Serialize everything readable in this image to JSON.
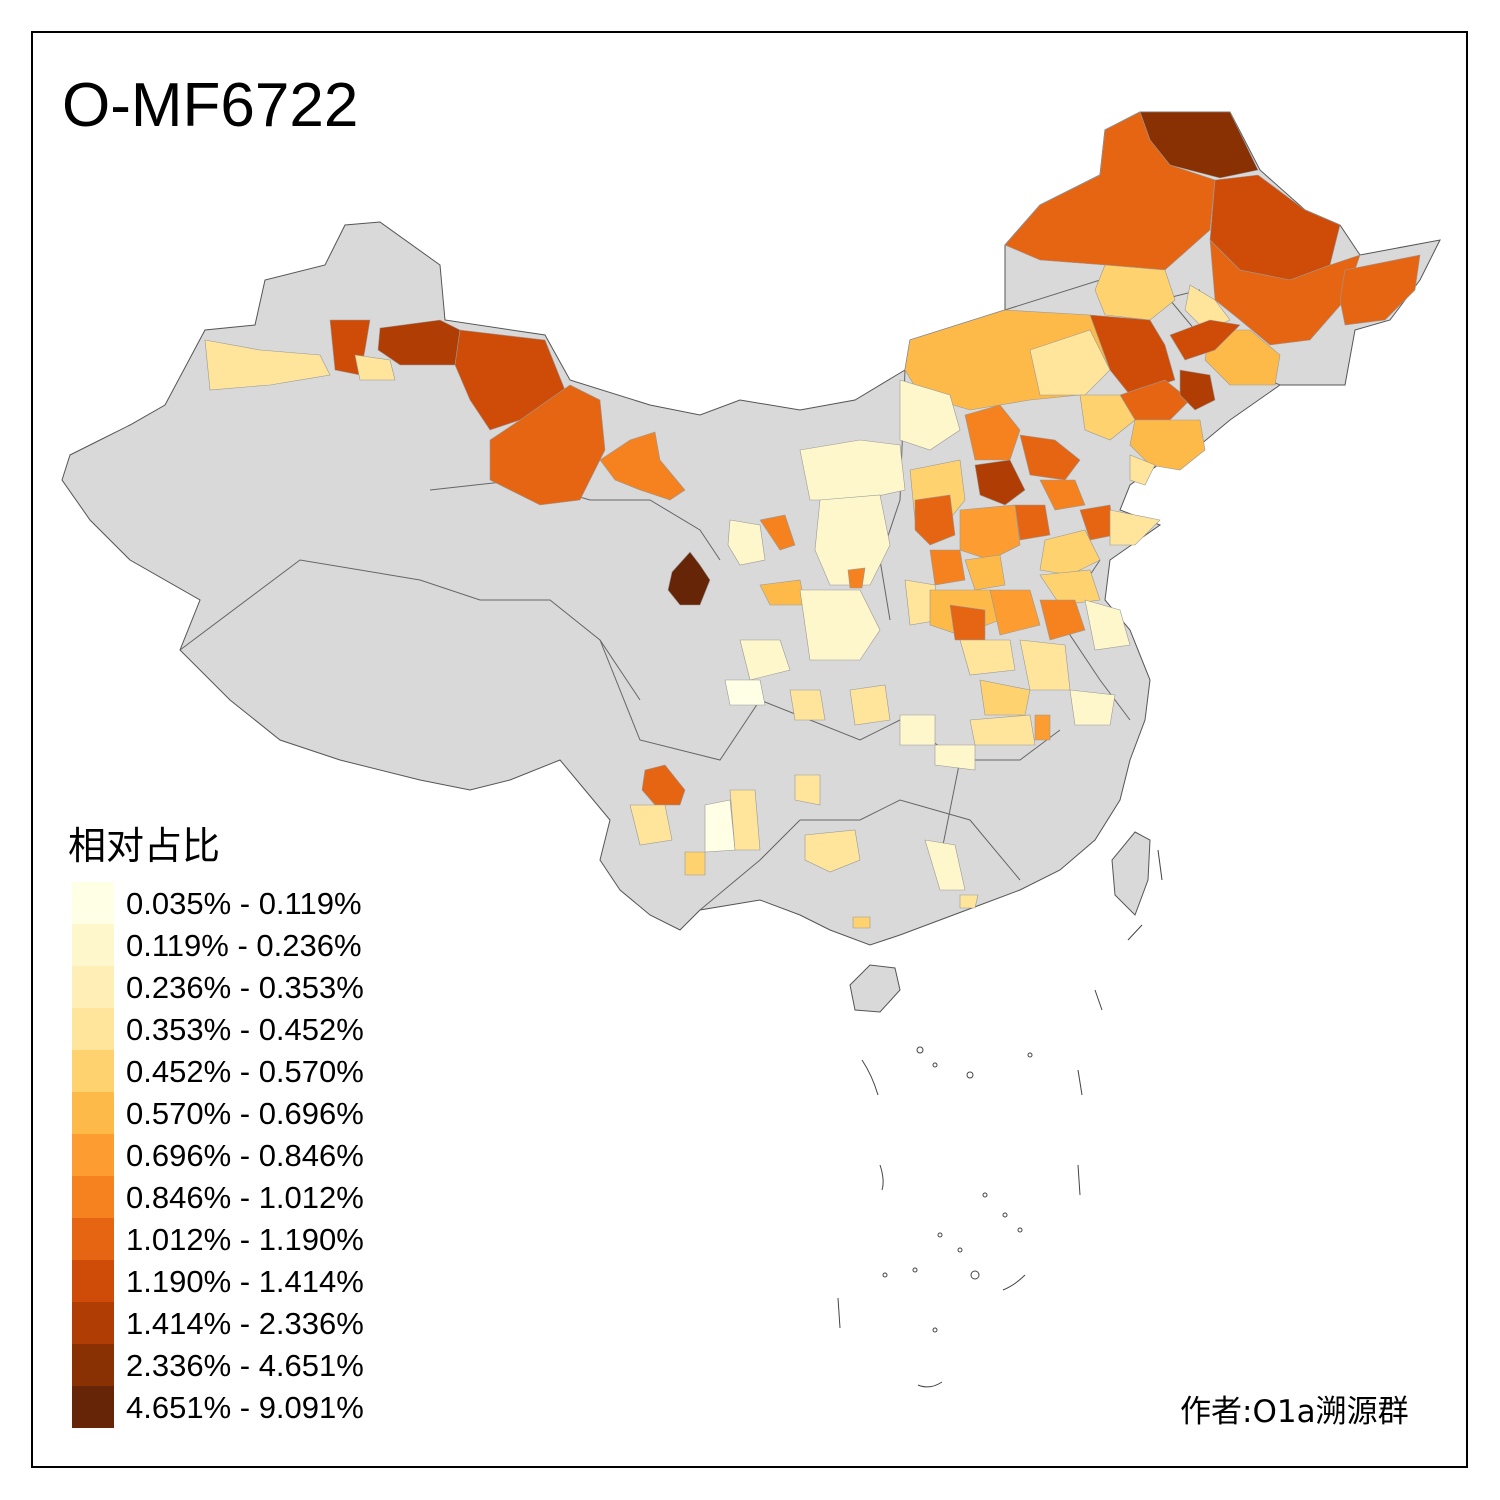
{
  "title": "O-MF6722",
  "legend": {
    "title": "相对占比",
    "bins": [
      {
        "label": "0.035% - 0.119%",
        "color": "#ffffe5"
      },
      {
        "label": "0.119% - 0.236%",
        "color": "#fff7cc"
      },
      {
        "label": "0.236% - 0.353%",
        "color": "#ffeeb5"
      },
      {
        "label": "0.353% - 0.452%",
        "color": "#fee59b"
      },
      {
        "label": "0.452% - 0.570%",
        "color": "#fed26f"
      },
      {
        "label": "0.570% - 0.696%",
        "color": "#feba49"
      },
      {
        "label": "0.696% - 0.846%",
        "color": "#fd9c30"
      },
      {
        "label": "0.846% - 1.012%",
        "color": "#f5821f"
      },
      {
        "label": "1.012% - 1.190%",
        "color": "#e56513"
      },
      {
        "label": "1.190% - 1.414%",
        "color": "#cf4c08"
      },
      {
        "label": "1.414% - 2.336%",
        "color": "#b03e04"
      },
      {
        "label": "2.336% - 4.651%",
        "color": "#8a3104"
      },
      {
        "label": "4.651% - 9.091%",
        "color": "#662506"
      }
    ]
  },
  "author": "作者:O1a溯源群",
  "no_data_color": "#d9d9d9"
}
